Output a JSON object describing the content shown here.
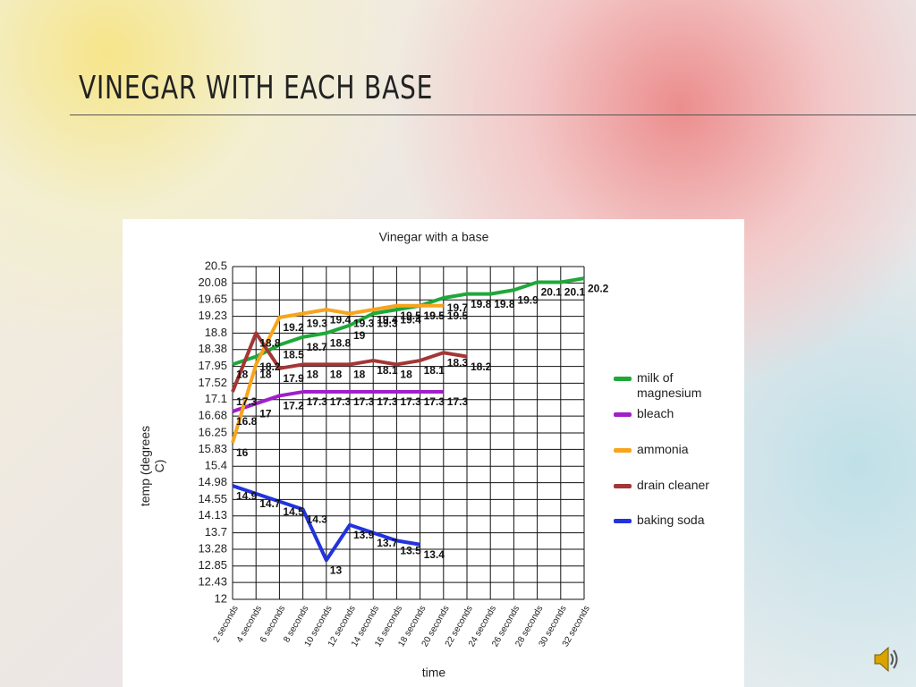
{
  "slide_title": "VINEGAR WITH EACH BASE",
  "chart_data": {
    "type": "line",
    "title": "Vinegar with a base",
    "x_label": "time",
    "y_label": "temp (degrees C)",
    "categories": [
      "2 seconds",
      "4 seconds",
      "6 seconds",
      "8 seconds",
      "10 seconds",
      "12 seconds",
      "14 seconds",
      "16 seconds",
      "18 seconds",
      "20 seconds",
      "22 seconds",
      "24 seconds",
      "26 seconds",
      "28 seconds",
      "30 seconds",
      "32 seconds"
    ],
    "series": [
      {
        "name": "milk of magnesium",
        "color": "#1fa83a",
        "values": [
          18,
          18.2,
          18.5,
          18.7,
          18.8,
          19,
          19.3,
          19.4,
          19.5,
          19.7,
          19.8,
          19.8,
          19.9,
          20.1,
          20.1,
          20.2
        ]
      },
      {
        "name": "bleach",
        "color": "#a020c8",
        "values": [
          16.8,
          17,
          17.2,
          17.3,
          17.3,
          17.3,
          17.3,
          17.3,
          17.3,
          17.3,
          null,
          null,
          null,
          null,
          null,
          null
        ]
      },
      {
        "name": "ammonia",
        "color": "#f7a51c",
        "values": [
          16,
          18,
          19.2,
          19.3,
          19.4,
          19.3,
          19.4,
          19.5,
          19.5,
          19.5,
          null,
          null,
          null,
          null,
          null,
          null
        ]
      },
      {
        "name": "drain cleaner",
        "color": "#a33636",
        "values": [
          17.3,
          18.8,
          17.9,
          18,
          18,
          18,
          18.1,
          18,
          18.1,
          18.3,
          18.2,
          null,
          null,
          null,
          null,
          null
        ]
      },
      {
        "name": "baking soda",
        "color": "#2233dd",
        "values": [
          14.9,
          14.7,
          14.5,
          14.3,
          13,
          13.9,
          13.7,
          13.5,
          13.4,
          null,
          null,
          null,
          null,
          null,
          null,
          null
        ]
      }
    ],
    "ylim": [
      12,
      20.5
    ],
    "yticks": [
      12,
      12.43,
      12.85,
      13.28,
      13.7,
      14.13,
      14.55,
      14.98,
      15.4,
      15.83,
      16.25,
      16.68,
      17.1,
      17.52,
      17.95,
      18.38,
      18.8,
      19.23,
      19.65,
      20.08,
      20.5
    ],
    "grid": true,
    "legend": "right"
  }
}
